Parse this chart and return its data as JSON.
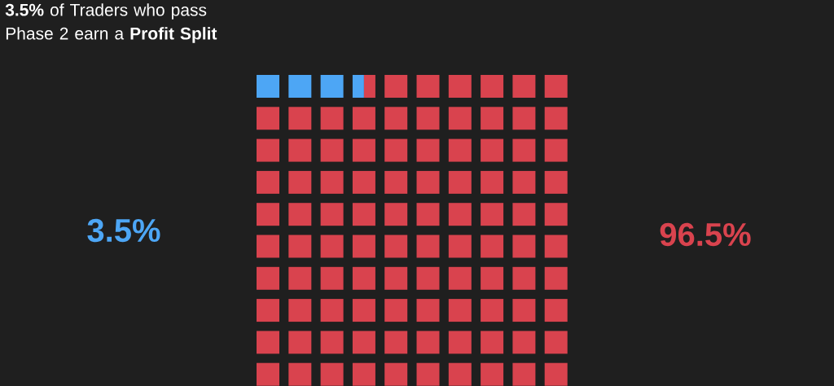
{
  "chart_data": {
    "type": "other",
    "title": "**3.5%** of Traders who pass Phase 2 earn a **Profit Split**",
    "categories": [
      null,
      null
    ],
    "values": [
      3.5,
      96.5
    ],
    "colors": [
      "#4da6f5",
      "#d9434e"
    ],
    "value_labels": [
      "3.5%",
      "96.5%"
    ]
  }
}
